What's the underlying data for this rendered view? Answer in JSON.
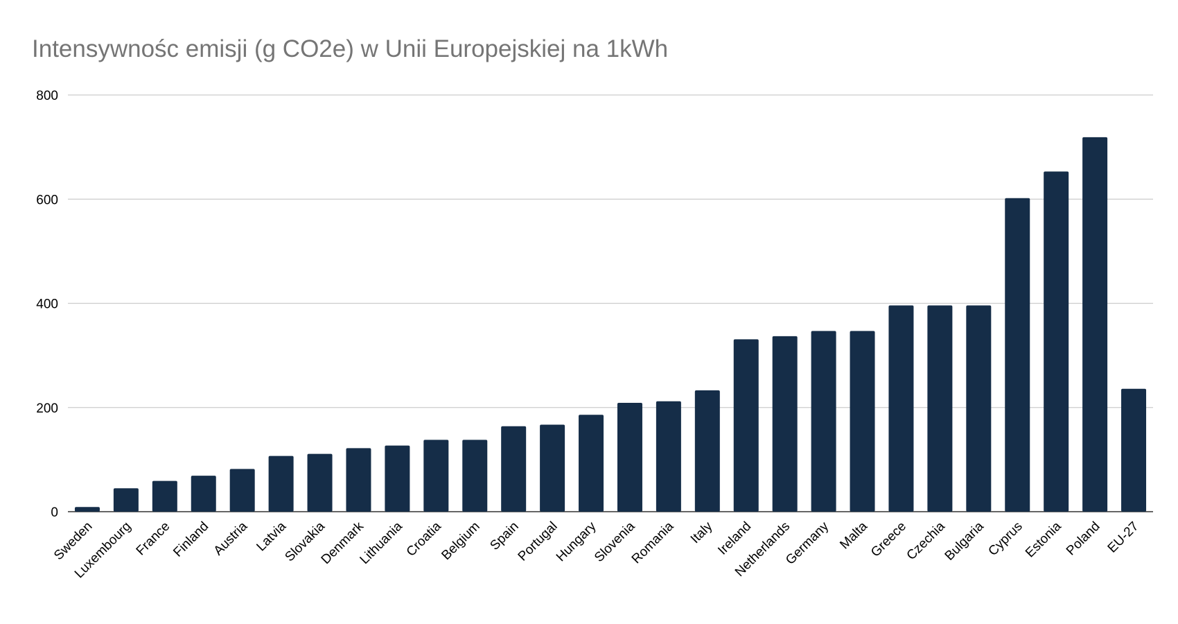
{
  "chart_data": {
    "type": "bar",
    "title": "Intensywnośc emisji (g CO2e) w Unii Europejskiej na 1kWh",
    "xlabel": "",
    "ylabel": "",
    "ylim": [
      0,
      800
    ],
    "yticks": [
      "0",
      "200",
      "400",
      "600",
      "800"
    ],
    "grid": true,
    "bar_color": "#152d48",
    "categories": [
      "Sweden",
      "Luxembourg",
      "France",
      "Finland",
      "Austria",
      "Latvia",
      "Slovakia",
      "Denmark",
      "Lithuania",
      "Croatia",
      "Belgium",
      "Spain",
      "Portugal",
      "Hungary",
      "Slovenia",
      "Romania",
      "Italy",
      "Ireland",
      "Netherlands",
      "Germany",
      "Malta",
      "Greece",
      "Czechia",
      "Bulgaria",
      "Cyprus",
      "Estonia",
      "Poland",
      "EU-27"
    ],
    "values": [
      9,
      45,
      59,
      69,
      82,
      107,
      111,
      122,
      127,
      138,
      138,
      164,
      167,
      186,
      209,
      212,
      233,
      331,
      337,
      347,
      347,
      396,
      396,
      396,
      602,
      653,
      719,
      236
    ]
  }
}
